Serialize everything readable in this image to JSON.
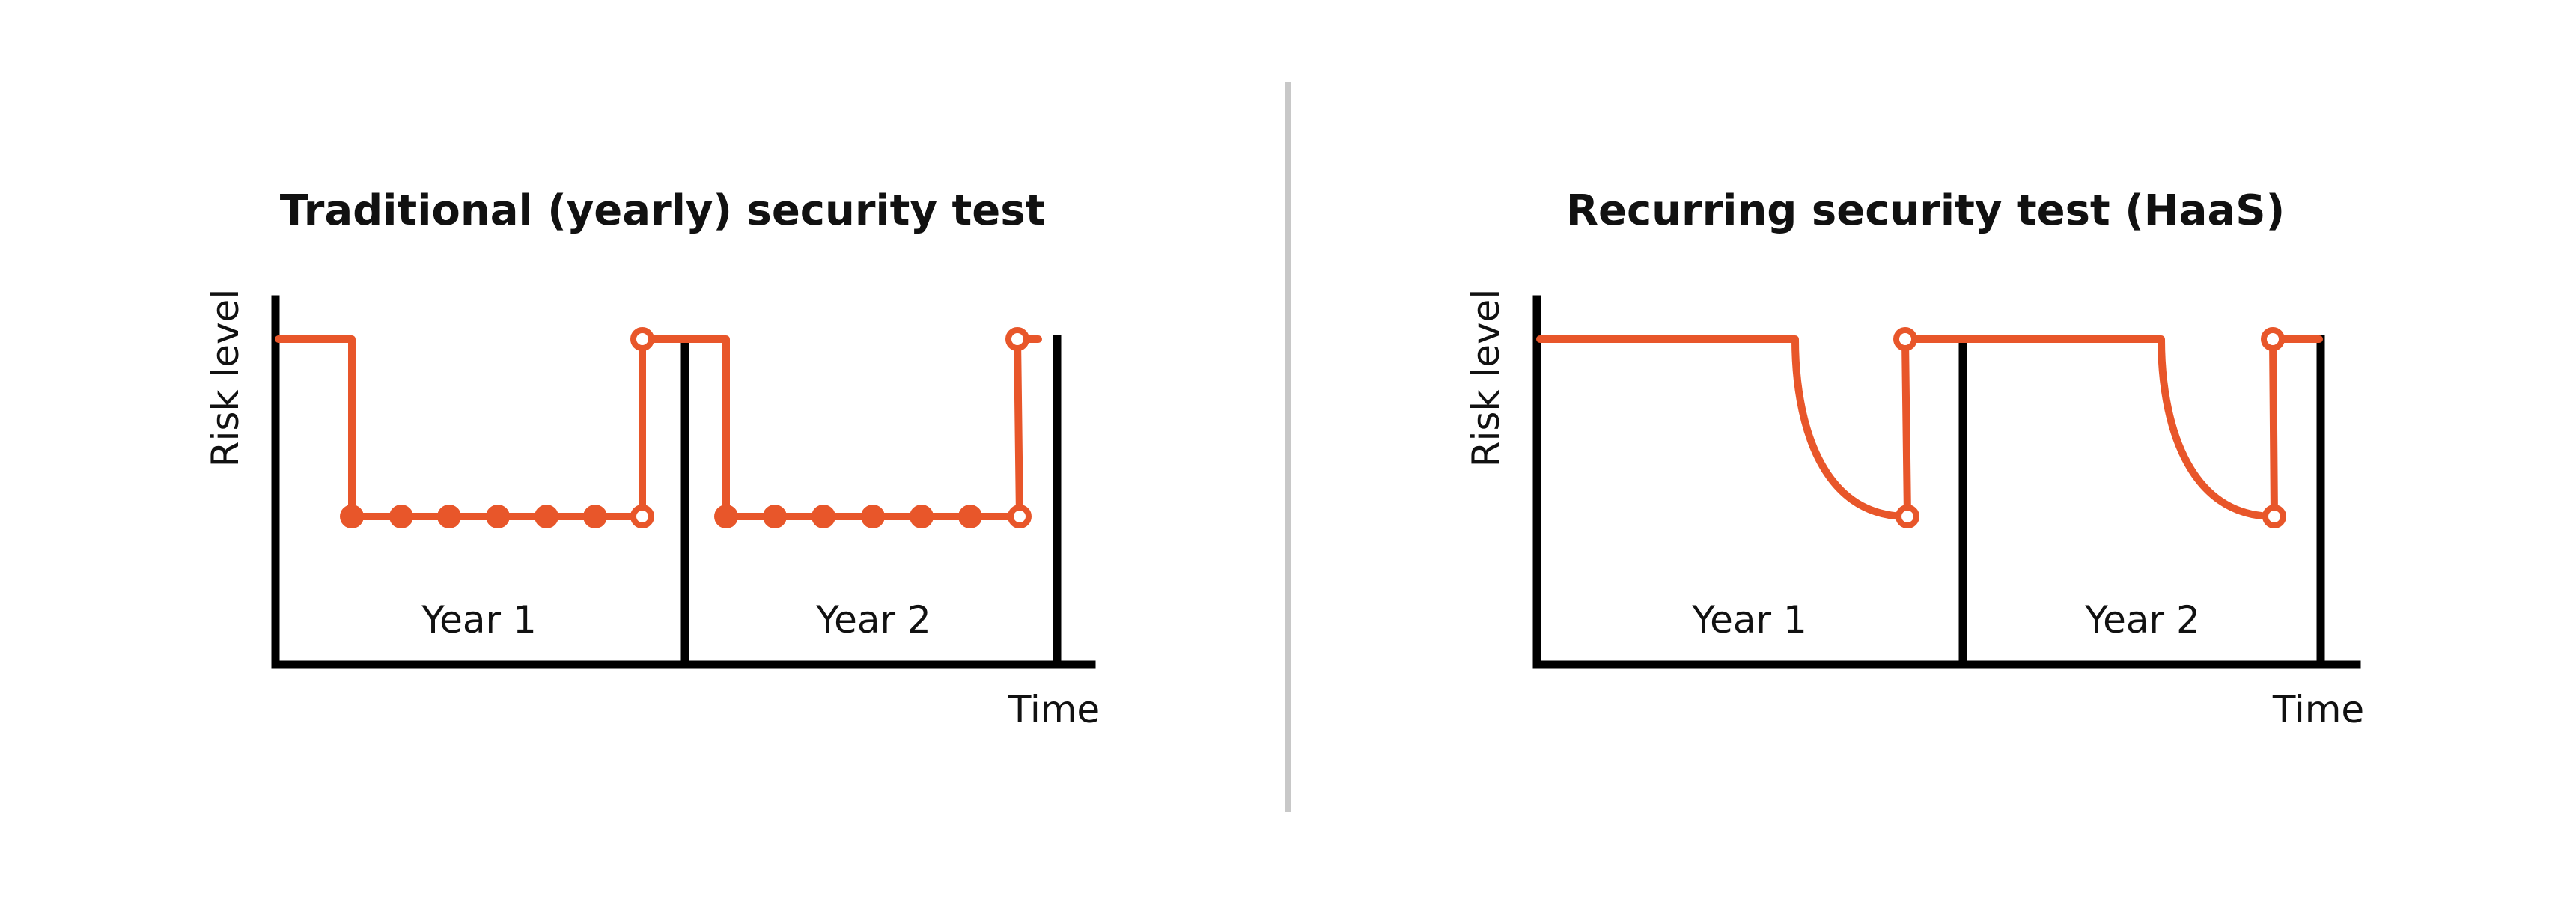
{
  "colors": {
    "risk": "#e8562a",
    "axis": "#000000",
    "divider": "#c8c8c8",
    "background": "#ffffff"
  },
  "left": {
    "title": "Traditional (yearly) security test",
    "ylabel": "Risk level",
    "xlabel": "Time",
    "year1": "Year 1",
    "year2": "Year 2"
  },
  "right": {
    "title": "Recurring security test (HaaS)",
    "ylabel": "Risk level",
    "xlabel": "Time",
    "year1": "Year 1",
    "year2": "Year 2"
  }
}
